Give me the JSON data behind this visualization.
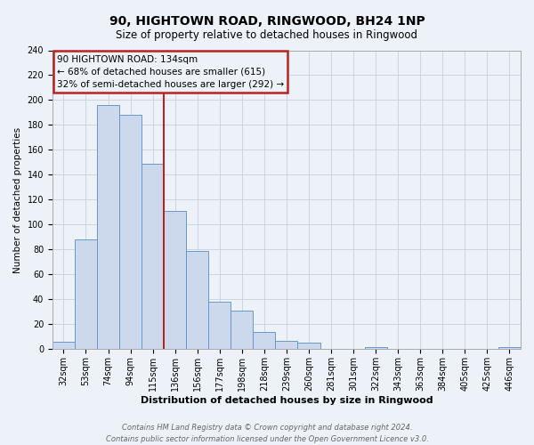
{
  "title": "90, HIGHTOWN ROAD, RINGWOOD, BH24 1NP",
  "subtitle": "Size of property relative to detached houses in Ringwood",
  "xlabel": "Distribution of detached houses by size in Ringwood",
  "ylabel": "Number of detached properties",
  "categories": [
    "32sqm",
    "53sqm",
    "74sqm",
    "94sqm",
    "115sqm",
    "136sqm",
    "156sqm",
    "177sqm",
    "198sqm",
    "218sqm",
    "239sqm",
    "260sqm",
    "281sqm",
    "301sqm",
    "322sqm",
    "343sqm",
    "363sqm",
    "384sqm",
    "405sqm",
    "425sqm",
    "446sqm"
  ],
  "values": [
    6,
    88,
    196,
    188,
    149,
    111,
    79,
    38,
    31,
    14,
    7,
    5,
    0,
    0,
    2,
    0,
    0,
    0,
    0,
    0,
    2
  ],
  "bar_color": "#ccd9ed",
  "bar_edge_color": "#6699cc",
  "grid_color": "#c8d0dc",
  "vline_index": 5,
  "vline_color": "#bb2222",
  "annotation_text": "90 HIGHTOWN ROAD: 134sqm\n← 68% of detached houses are smaller (615)\n32% of semi-detached houses are larger (292) →",
  "annotation_box_color": "#bb2222",
  "ylim": [
    0,
    240
  ],
  "yticks": [
    0,
    20,
    40,
    60,
    80,
    100,
    120,
    140,
    160,
    180,
    200,
    220,
    240
  ],
  "footer_line1": "Contains HM Land Registry data © Crown copyright and database right 2024.",
  "footer_line2": "Contains public sector information licensed under the Open Government Licence v3.0.",
  "bg_color": "#edf2f9",
  "title_fontsize": 10,
  "subtitle_fontsize": 8.5,
  "xlabel_fontsize": 8,
  "ylabel_fontsize": 7.5,
  "tick_fontsize": 7,
  "annot_fontsize": 7.5
}
